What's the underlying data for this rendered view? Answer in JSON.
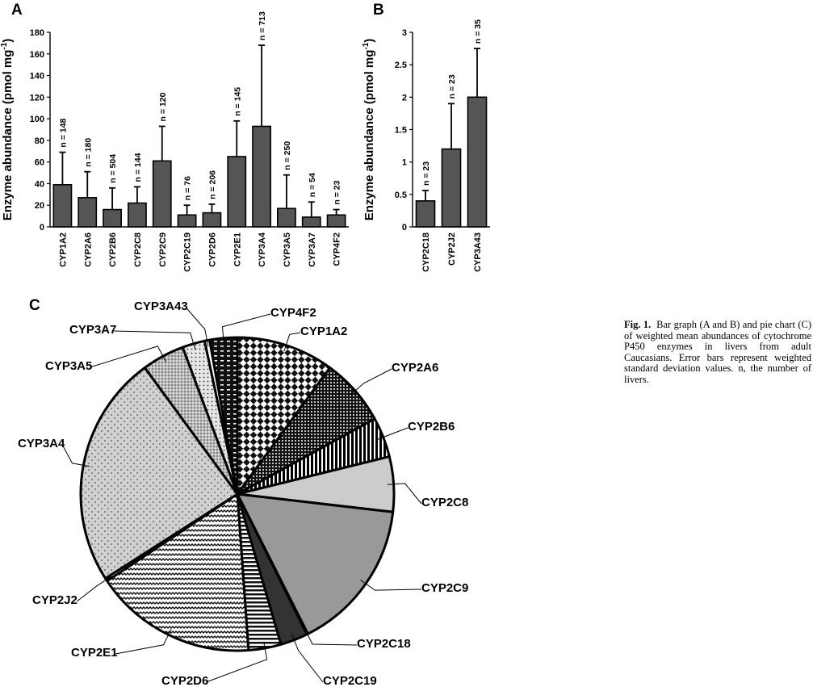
{
  "caption": {
    "label": "Fig. 1.",
    "text": "Bar graph (A and B) and pie chart (C) of weighted mean abundances of cytochrome P450 enzymes in livers from adult Caucasians. Error bars represent weighted standard deviation values. n, the number of livers."
  },
  "colors": {
    "bar": "#555555",
    "bar_stroke": "#000000"
  },
  "chart_data": [
    {
      "panel": "A",
      "type": "bar",
      "ylabel": "Enzyme abundance (pmol mg-1)",
      "ylabel_main": "Enzyme abundance (pmol mg",
      "ylabel_sup": "-1",
      "ylabel_close": ")",
      "ylim": [
        0,
        180
      ],
      "yticks": [
        0,
        20,
        40,
        60,
        80,
        100,
        120,
        140,
        160,
        180
      ],
      "categories": [
        "CYP1A2",
        "CYP2A6",
        "CYP2B6",
        "CYP2C8",
        "CYP2C9",
        "CYP2C19",
        "CYP2D6",
        "CYP2E1",
        "CYP3A4",
        "CYP3A5",
        "CYP3A7",
        "CYP4F2"
      ],
      "values": [
        39,
        27,
        16,
        22,
        61,
        11,
        13,
        65,
        93,
        17,
        9,
        11
      ],
      "errors": [
        30,
        24,
        20,
        15,
        32,
        9,
        8,
        33,
        75,
        31,
        14,
        5
      ],
      "n_labels": [
        "n = 148",
        "n = 180",
        "n = 504",
        "n = 144",
        "n = 120",
        "n = 76",
        "n = 206",
        "n = 145",
        "n = 713",
        "n = 250",
        "n = 54",
        "n = 23"
      ],
      "grid": false
    },
    {
      "panel": "B",
      "type": "bar",
      "ylabel": "Enzyme abundance (pmol mg-1)",
      "ylabel_main": "Enzyme abundance (pmol mg",
      "ylabel_sup": "-1",
      "ylabel_close": ")",
      "ylim": [
        0,
        3
      ],
      "yticks": [
        0,
        0.5,
        1,
        1.5,
        2,
        2.5,
        3
      ],
      "categories": [
        "CYP2C18",
        "CYP2J2",
        "CYP3A43"
      ],
      "values": [
        0.4,
        1.2,
        2.0
      ],
      "errors": [
        0.16,
        0.7,
        0.75
      ],
      "n_labels": [
        "n = 23",
        "n = 23",
        "n = 35"
      ],
      "grid": false
    },
    {
      "panel": "C",
      "type": "pie",
      "slices": [
        {
          "label": "CYP1A2",
          "value": 39,
          "fill": "checker"
        },
        {
          "label": "CYP2A6",
          "value": 27,
          "fill": "dots-dark"
        },
        {
          "label": "CYP2B6",
          "value": 16,
          "fill": "vstripes"
        },
        {
          "label": "CYP2C8",
          "value": 22,
          "fill": "#cccccc"
        },
        {
          "label": "CYP2C9",
          "value": 61,
          "fill": "#999999"
        },
        {
          "label": "CYP2C18",
          "value": 0.4,
          "fill": "#ffffff"
        },
        {
          "label": "CYP2C19",
          "value": 11,
          "fill": "#333333"
        },
        {
          "label": "CYP2D6",
          "value": 13,
          "fill": "hstripes"
        },
        {
          "label": "CYP2E1",
          "value": 65,
          "fill": "wave"
        },
        {
          "label": "CYP2J2",
          "value": 1.2,
          "fill": "#ffffff"
        },
        {
          "label": "CYP3A4",
          "value": 93,
          "fill": "dots-light"
        },
        {
          "label": "CYP3A5",
          "value": 17,
          "fill": "dots-grey"
        },
        {
          "label": "CYP3A7",
          "value": 9,
          "fill": "dots-sparse"
        },
        {
          "label": "CYP3A43",
          "value": 2.0,
          "fill": "#ffffff"
        },
        {
          "label": "CYP4F2",
          "value": 11,
          "fill": "dashes"
        }
      ]
    }
  ]
}
